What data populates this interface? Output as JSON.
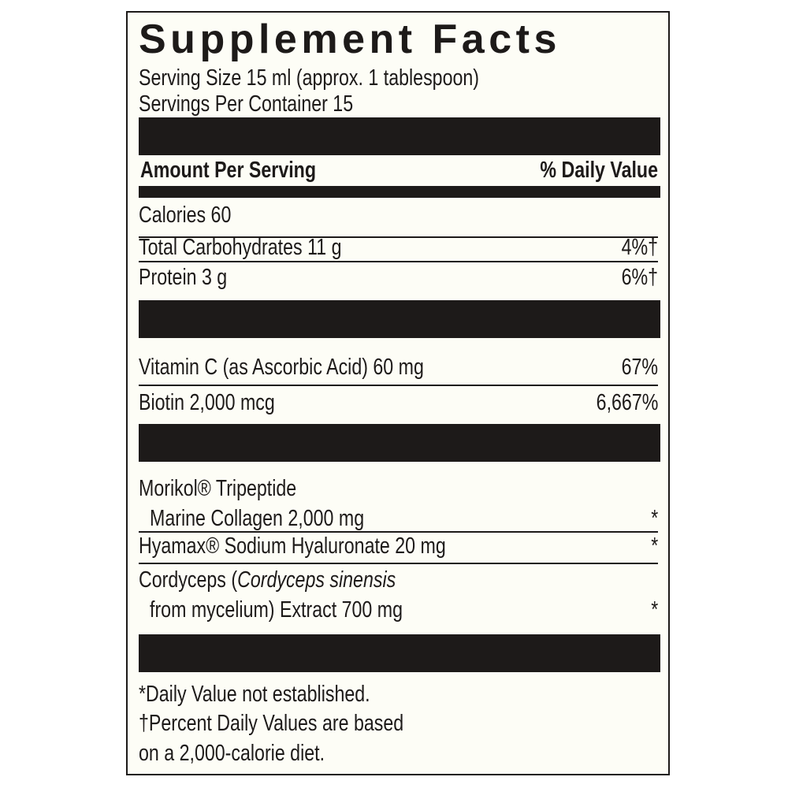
{
  "title": "Supplement Facts",
  "serving_size": "Serving Size 15 ml (approx. 1 tablespoon)",
  "servings_per_container": "Servings Per Container 15",
  "header": {
    "amount": "Amount Per Serving",
    "dv": "% Daily Value"
  },
  "rows": [
    {
      "name": "Calories 60",
      "dv": ""
    },
    {
      "name": "Total Carbohydrates 11 g",
      "dv": "4%†"
    },
    {
      "name": "Protein 3 g",
      "dv": "6%†"
    },
    {
      "name": "Vitamin C (as Ascorbic Acid) 60 mg",
      "dv": "67%"
    },
    {
      "name": "Biotin 2,000 mcg",
      "dv": "6,667%"
    },
    {
      "name": "Morikol® Tripeptide",
      "name2": "Marine Collagen 2,000 mg",
      "dv": "*"
    },
    {
      "name": "Hyamax® Sodium Hyaluronate 20 mg",
      "dv": "*"
    },
    {
      "name_pre": "Cordyceps (",
      "name_italic": "Cordyceps sinensis",
      "name2": "from mycelium) Extract 700 mg",
      "dv": "*"
    }
  ],
  "footnotes": [
    "*Daily Value not established.",
    "†Percent Daily Values are based",
    "on a 2,000-calorie diet."
  ],
  "colors": {
    "ink": "#1d1a19",
    "background": "#fdfdf6"
  }
}
